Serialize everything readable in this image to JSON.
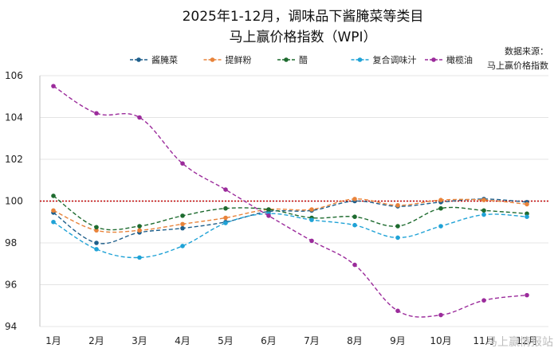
{
  "chart_data": {
    "type": "line",
    "title": "2025年1-12月，调味品下酱腌菜等类目",
    "subtitle": "马上赢价格指数（WPI）",
    "categories": [
      "1月",
      "2月",
      "3月",
      "4月",
      "5月",
      "6月",
      "7月",
      "8月",
      "9月",
      "10月",
      "11月",
      "12月"
    ],
    "ylim": [
      94,
      106
    ],
    "yticks": [
      94,
      96,
      98,
      100,
      102,
      104,
      106
    ],
    "reference_line": 100,
    "reference_color": "#c00000",
    "source_label": "数据来源：",
    "source_name": "马上赢价格指数",
    "watermark": "马上赢情报站",
    "series": [
      {
        "name": "酱腌菜",
        "color": "#1f5f8b",
        "values": [
          99.45,
          98.0,
          98.5,
          98.7,
          99.0,
          99.5,
          99.55,
          100.0,
          99.75,
          99.95,
          100.1,
          99.95
        ]
      },
      {
        "name": "提鲜粉",
        "color": "#e8833a",
        "values": [
          99.55,
          98.6,
          98.6,
          98.9,
          99.2,
          99.6,
          99.6,
          100.1,
          99.8,
          100.05,
          100.05,
          99.85
        ]
      },
      {
        "name": "醋",
        "color": "#1e6b2f",
        "values": [
          100.25,
          98.75,
          98.8,
          99.3,
          99.65,
          99.6,
          99.2,
          99.25,
          98.8,
          99.65,
          99.55,
          99.4
        ]
      },
      {
        "name": "复合调味汁",
        "color": "#1fa2d6",
        "values": [
          99.0,
          97.7,
          97.3,
          97.85,
          98.95,
          99.4,
          99.1,
          98.85,
          98.25,
          98.8,
          99.35,
          99.25
        ]
      },
      {
        "name": "橄榄油",
        "color": "#9b2b9b",
        "values": [
          105.5,
          104.2,
          104.0,
          101.8,
          100.55,
          99.3,
          98.1,
          96.95,
          94.75,
          94.55,
          95.25,
          95.5
        ]
      }
    ]
  }
}
